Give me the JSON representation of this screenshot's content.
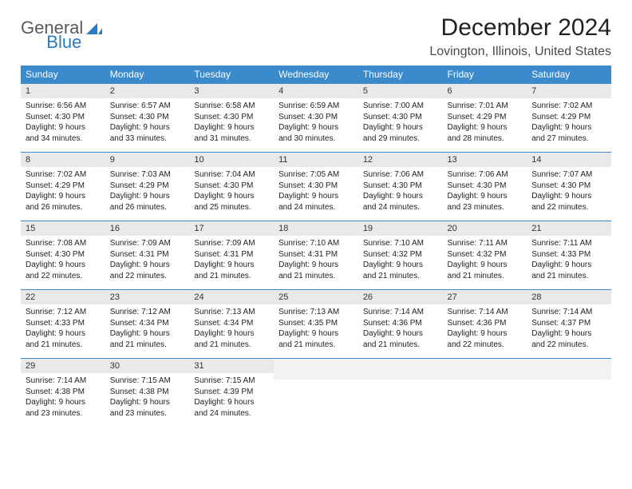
{
  "brand": {
    "part1": "General",
    "part2": "Blue"
  },
  "title": "December 2024",
  "location": "Lovington, Illinois, United States",
  "colors": {
    "header_bg": "#3b8acb",
    "header_text": "#ffffff",
    "daynum_bg": "#e9e9e9",
    "divider": "#3b8acb",
    "logo_gray": "#5a5a5a",
    "logo_blue": "#2a7abf"
  },
  "day_headers": [
    "Sunday",
    "Monday",
    "Tuesday",
    "Wednesday",
    "Thursday",
    "Friday",
    "Saturday"
  ],
  "weeks": [
    [
      {
        "n": "1",
        "sr": "6:56 AM",
        "ss": "4:30 PM",
        "dl": "9 hours and 34 minutes."
      },
      {
        "n": "2",
        "sr": "6:57 AM",
        "ss": "4:30 PM",
        "dl": "9 hours and 33 minutes."
      },
      {
        "n": "3",
        "sr": "6:58 AM",
        "ss": "4:30 PM",
        "dl": "9 hours and 31 minutes."
      },
      {
        "n": "4",
        "sr": "6:59 AM",
        "ss": "4:30 PM",
        "dl": "9 hours and 30 minutes."
      },
      {
        "n": "5",
        "sr": "7:00 AM",
        "ss": "4:30 PM",
        "dl": "9 hours and 29 minutes."
      },
      {
        "n": "6",
        "sr": "7:01 AM",
        "ss": "4:29 PM",
        "dl": "9 hours and 28 minutes."
      },
      {
        "n": "7",
        "sr": "7:02 AM",
        "ss": "4:29 PM",
        "dl": "9 hours and 27 minutes."
      }
    ],
    [
      {
        "n": "8",
        "sr": "7:02 AM",
        "ss": "4:29 PM",
        "dl": "9 hours and 26 minutes."
      },
      {
        "n": "9",
        "sr": "7:03 AM",
        "ss": "4:29 PM",
        "dl": "9 hours and 26 minutes."
      },
      {
        "n": "10",
        "sr": "7:04 AM",
        "ss": "4:30 PM",
        "dl": "9 hours and 25 minutes."
      },
      {
        "n": "11",
        "sr": "7:05 AM",
        "ss": "4:30 PM",
        "dl": "9 hours and 24 minutes."
      },
      {
        "n": "12",
        "sr": "7:06 AM",
        "ss": "4:30 PM",
        "dl": "9 hours and 24 minutes."
      },
      {
        "n": "13",
        "sr": "7:06 AM",
        "ss": "4:30 PM",
        "dl": "9 hours and 23 minutes."
      },
      {
        "n": "14",
        "sr": "7:07 AM",
        "ss": "4:30 PM",
        "dl": "9 hours and 22 minutes."
      }
    ],
    [
      {
        "n": "15",
        "sr": "7:08 AM",
        "ss": "4:30 PM",
        "dl": "9 hours and 22 minutes."
      },
      {
        "n": "16",
        "sr": "7:09 AM",
        "ss": "4:31 PM",
        "dl": "9 hours and 22 minutes."
      },
      {
        "n": "17",
        "sr": "7:09 AM",
        "ss": "4:31 PM",
        "dl": "9 hours and 21 minutes."
      },
      {
        "n": "18",
        "sr": "7:10 AM",
        "ss": "4:31 PM",
        "dl": "9 hours and 21 minutes."
      },
      {
        "n": "19",
        "sr": "7:10 AM",
        "ss": "4:32 PM",
        "dl": "9 hours and 21 minutes."
      },
      {
        "n": "20",
        "sr": "7:11 AM",
        "ss": "4:32 PM",
        "dl": "9 hours and 21 minutes."
      },
      {
        "n": "21",
        "sr": "7:11 AM",
        "ss": "4:33 PM",
        "dl": "9 hours and 21 minutes."
      }
    ],
    [
      {
        "n": "22",
        "sr": "7:12 AM",
        "ss": "4:33 PM",
        "dl": "9 hours and 21 minutes."
      },
      {
        "n": "23",
        "sr": "7:12 AM",
        "ss": "4:34 PM",
        "dl": "9 hours and 21 minutes."
      },
      {
        "n": "24",
        "sr": "7:13 AM",
        "ss": "4:34 PM",
        "dl": "9 hours and 21 minutes."
      },
      {
        "n": "25",
        "sr": "7:13 AM",
        "ss": "4:35 PM",
        "dl": "9 hours and 21 minutes."
      },
      {
        "n": "26",
        "sr": "7:14 AM",
        "ss": "4:36 PM",
        "dl": "9 hours and 21 minutes."
      },
      {
        "n": "27",
        "sr": "7:14 AM",
        "ss": "4:36 PM",
        "dl": "9 hours and 22 minutes."
      },
      {
        "n": "28",
        "sr": "7:14 AM",
        "ss": "4:37 PM",
        "dl": "9 hours and 22 minutes."
      }
    ],
    [
      {
        "n": "29",
        "sr": "7:14 AM",
        "ss": "4:38 PM",
        "dl": "9 hours and 23 minutes."
      },
      {
        "n": "30",
        "sr": "7:15 AM",
        "ss": "4:38 PM",
        "dl": "9 hours and 23 minutes."
      },
      {
        "n": "31",
        "sr": "7:15 AM",
        "ss": "4:39 PM",
        "dl": "9 hours and 24 minutes."
      },
      {
        "empty": true
      },
      {
        "empty": true
      },
      {
        "empty": true
      },
      {
        "empty": true
      }
    ]
  ],
  "labels": {
    "sunrise": "Sunrise:",
    "sunset": "Sunset:",
    "daylight": "Daylight:"
  }
}
